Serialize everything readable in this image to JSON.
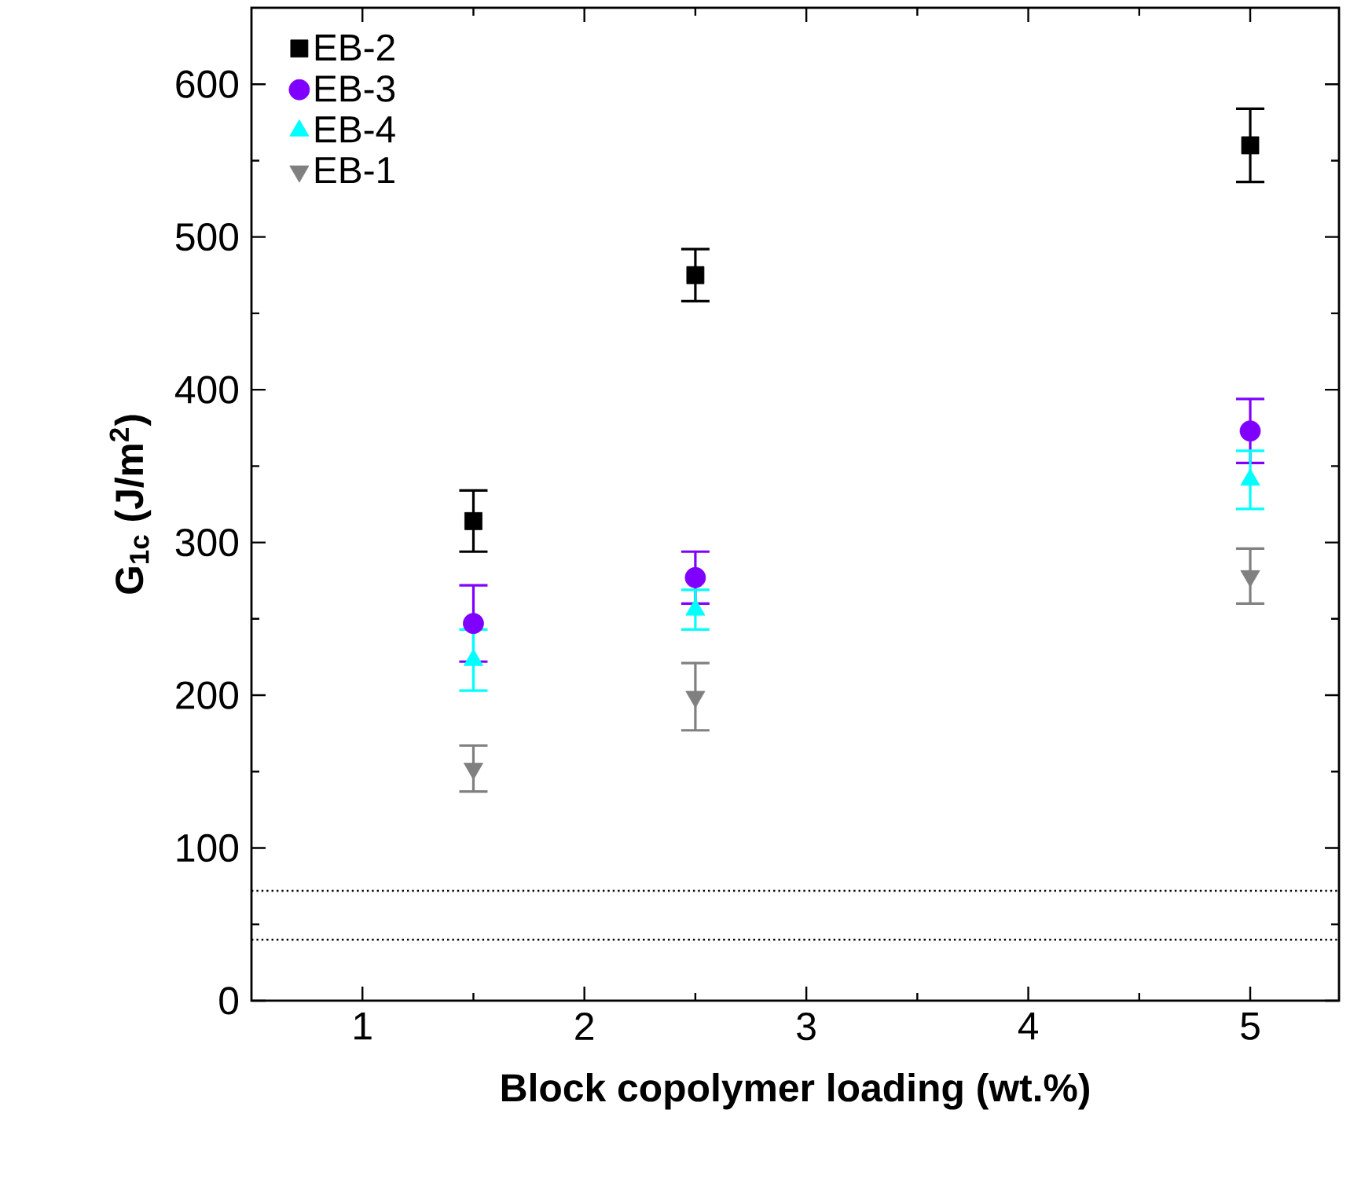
{
  "chart_data": {
    "type": "scatter",
    "xlabel": "Block copolymer loading (wt.%)",
    "ylabel": "G$_{1c}$ (J/m$^{2}$)",
    "xlim": [
      0.5,
      5.4
    ],
    "xticks": [
      1,
      2,
      3,
      4,
      5
    ],
    "ylim": [
      0,
      650
    ],
    "yticks": [
      0,
      100,
      200,
      300,
      400,
      500,
      600
    ],
    "legend": "top left",
    "grid": false,
    "series": [
      {
        "name": "EB-2",
        "color": "#000000",
        "marker": "square",
        "x": [
          1.5,
          2.5,
          5
        ],
        "values": [
          314,
          475,
          560
        ],
        "errors": [
          20,
          17,
          24
        ]
      },
      {
        "name": "EB-3",
        "color": "#8000ff",
        "marker": "circle",
        "x": [
          1.5,
          2.5,
          5
        ],
        "values": [
          247,
          277,
          373
        ],
        "errors": [
          25,
          17,
          21
        ]
      },
      {
        "name": "EB-4",
        "color": "#00ffff",
        "marker": "triangle",
        "x": [
          1.5,
          2.5,
          5
        ],
        "values": [
          223,
          256,
          341
        ],
        "errors": [
          20,
          13,
          19
        ]
      },
      {
        "name": "EB-1",
        "color": "#808080",
        "marker": "triangle-down",
        "x": [
          1.5,
          2.5,
          5
        ],
        "values": [
          152,
          199,
          278
        ],
        "errors": [
          15,
          22,
          18
        ]
      }
    ],
    "ref_lines": [
      {
        "axis": "y",
        "value": 72,
        "line_style": "dotted",
        "color": "#000000"
      },
      {
        "axis": "y",
        "value": 40,
        "line_style": "dotted",
        "color": "#000000"
      }
    ]
  }
}
